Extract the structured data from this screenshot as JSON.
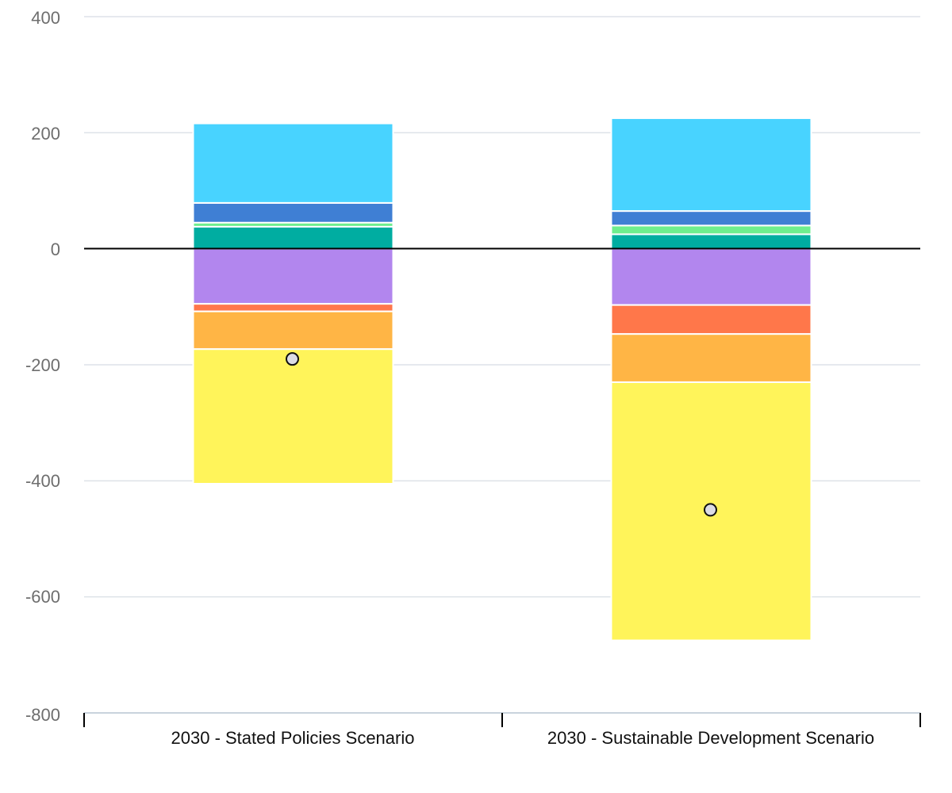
{
  "chart_data": {
    "type": "bar",
    "stacked": true,
    "categories": [
      "2030 - Stated Policies Scenario",
      "2030 - Sustainable Development Scenario"
    ],
    "y_ticks": [
      "400",
      "200",
      "0",
      "-200",
      "-400",
      "-600",
      "-800"
    ],
    "ylim": [
      -800,
      400
    ],
    "grid": true,
    "legend": "none",
    "series": [
      {
        "color": "#00ADA1",
        "values": [
          38,
          25
        ]
      },
      {
        "color": "#6EEE8E",
        "values": [
          7,
          15
        ]
      },
      {
        "color": "#3F7FD4",
        "values": [
          34,
          25
        ]
      },
      {
        "color": "#48D3FF",
        "values": [
          137,
          160
        ]
      },
      {
        "color": "#B286EE",
        "values": [
          -95,
          -97
        ]
      },
      {
        "color": "#FF774A",
        "values": [
          -13,
          -50
        ]
      },
      {
        "color": "#FFB545",
        "values": [
          -65,
          -83
        ]
      },
      {
        "color": "#FFF45A",
        "values": [
          -232,
          -445
        ]
      }
    ],
    "markers": {
      "color": "#DCDCE4",
      "values": [
        -190,
        -450
      ]
    }
  }
}
